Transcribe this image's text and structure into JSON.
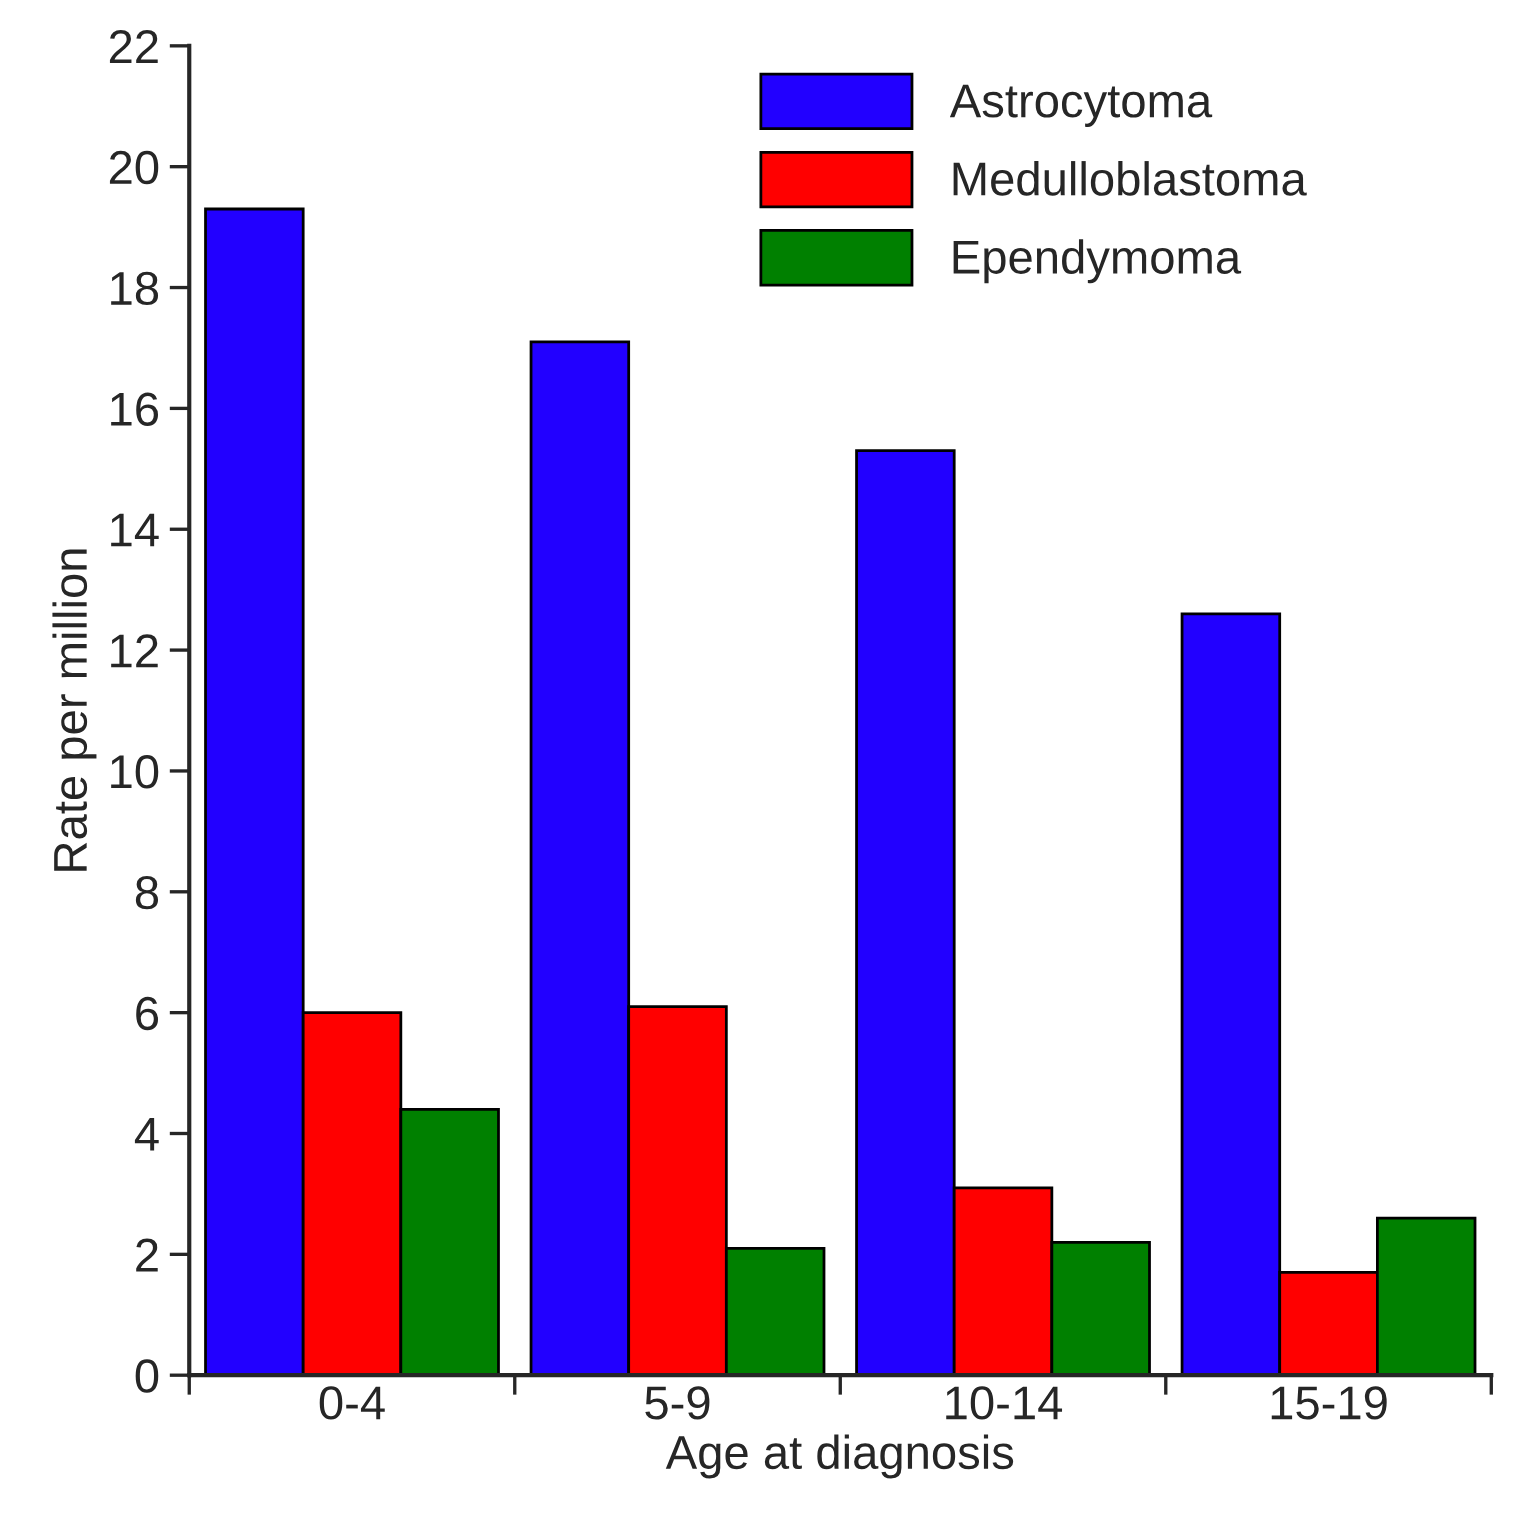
{
  "chart_data": {
    "type": "bar",
    "xlabel": "Age at diagnosis",
    "ylabel": "Rate per million",
    "categories": [
      "0-4",
      "5-9",
      "10-14",
      "15-19"
    ],
    "series": [
      {
        "name": "Astrocytoma",
        "color": "#2200ff",
        "values": [
          19.3,
          17.1,
          15.3,
          12.6
        ]
      },
      {
        "name": "Medulloblastoma",
        "color": "#ff0000",
        "values": [
          6.0,
          6.1,
          3.1,
          1.7
        ]
      },
      {
        "name": "Ependymoma",
        "color": "#008000",
        "values": [
          4.4,
          2.1,
          2.2,
          2.6
        ]
      }
    ],
    "ylim": [
      0,
      22
    ],
    "yticks": [
      0,
      2,
      4,
      6,
      8,
      10,
      12,
      14,
      16,
      18,
      20,
      22
    ],
    "grid": false,
    "legend": "top right"
  }
}
